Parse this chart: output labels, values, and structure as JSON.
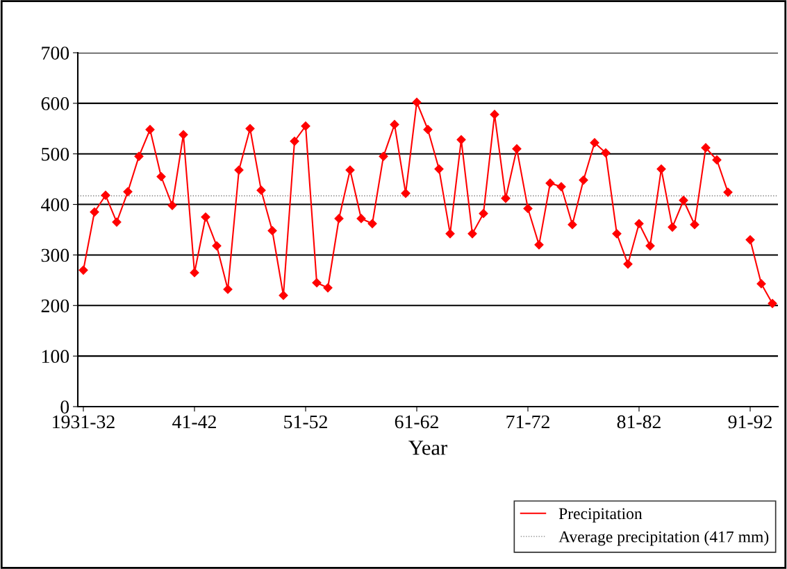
{
  "chart_data": {
    "type": "line",
    "xlabel": "Year",
    "categories": [
      "1931-32",
      null,
      null,
      null,
      null,
      null,
      null,
      null,
      null,
      null,
      "41-42",
      null,
      null,
      null,
      null,
      null,
      null,
      null,
      null,
      null,
      "51-52",
      null,
      null,
      null,
      null,
      null,
      null,
      null,
      null,
      null,
      "61-62",
      null,
      null,
      null,
      null,
      null,
      null,
      null,
      null,
      null,
      "71-72",
      null,
      null,
      null,
      null,
      null,
      null,
      null,
      null,
      null,
      "81-82",
      null,
      null,
      null,
      null,
      null,
      null,
      null,
      null,
      null,
      "91-92",
      null,
      null
    ],
    "series": [
      {
        "name": "Precipitation",
        "color": "#ff0000",
        "values": [
          270,
          385,
          418,
          365,
          425,
          495,
          548,
          455,
          398,
          538,
          265,
          375,
          318,
          232,
          468,
          550,
          428,
          348,
          220,
          525,
          555,
          245,
          235,
          372,
          468,
          372,
          362,
          495,
          558,
          422,
          602,
          548,
          470,
          342,
          528,
          342,
          382,
          578,
          412,
          510,
          392,
          320,
          442,
          435,
          360,
          448,
          522,
          502,
          342,
          282,
          362,
          318,
          470,
          355,
          408,
          360,
          512,
          488,
          424,
          null,
          330,
          243,
          204
        ]
      }
    ],
    "ylim": [
      0,
      700
    ],
    "yticks": [
      0,
      100,
      200,
      300,
      400,
      500,
      600,
      700
    ],
    "grid": "y",
    "marker": "diamond",
    "line_style": "solid",
    "legend": "bottom right",
    "ref_lines": [
      {
        "axis": "y",
        "value": 417,
        "label": "Average precipitation (417 mm)",
        "color": "#808080",
        "line_style": "dotted"
      }
    ]
  }
}
